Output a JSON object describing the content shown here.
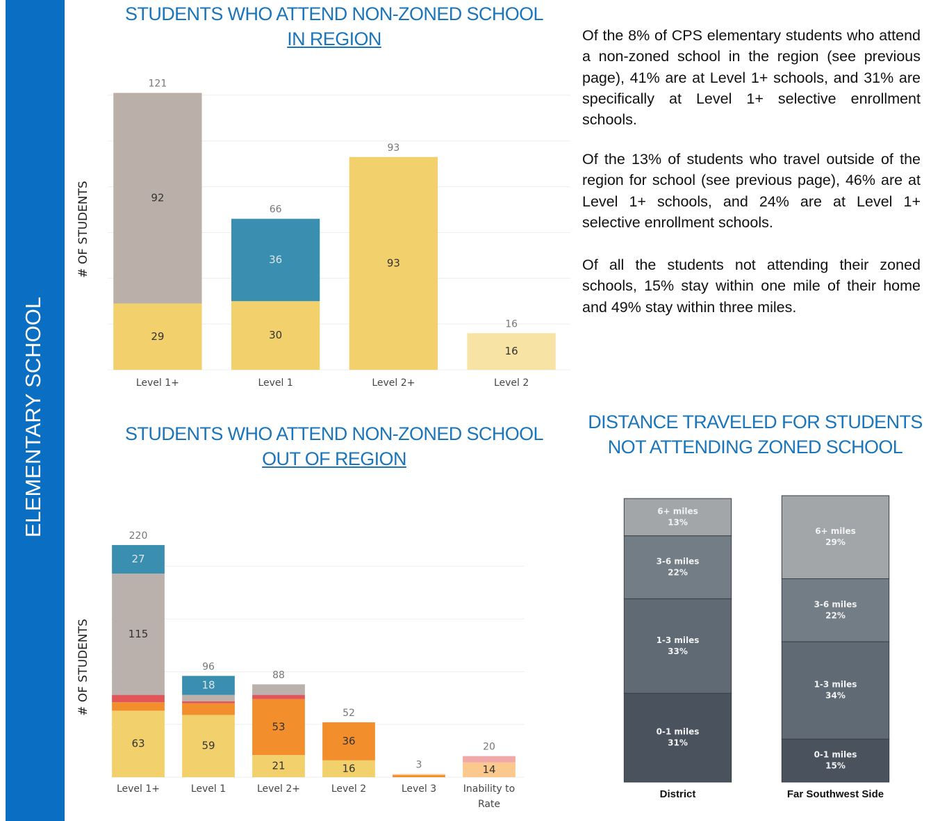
{
  "sidebar": "ELEMENTARY SCHOOL",
  "paragraphs": [
    "Of the 8% of CPS elementary students who attend a non-zoned school in the region (see previous page), 41% are at Level 1+ schools, and 31% are specifically at Level 1+ selective enrollment schools.",
    "Of the 13% of students who travel outside of the region for school (see previous page), 46% are at Level 1+ schools, and 24% are at Level 1+ selective enrollment schools.",
    "Of all the students not attending their zoned schools, 15% stay within one mile of their home and 49% stay within three miles."
  ],
  "chart_data": [
    {
      "type": "stacked_bar",
      "title": "STUDENTS WHO ATTEND NON-ZONED SCHOOL",
      "subtitle": "IN REGION",
      "y_label": "# OF STUDENTS",
      "categories": [
        "Level 1+",
        "Level 1",
        "Level 2+",
        "Level 2"
      ],
      "series": [
        {
          "color": "#f2d06b",
          "values": [
            29,
            30,
            93,
            null
          ]
        },
        {
          "color": "#f7e3a3",
          "values": [
            null,
            null,
            null,
            16
          ]
        },
        {
          "color": "#bab0a9",
          "values": [
            92,
            null,
            null,
            null
          ]
        },
        {
          "color": "#3a8fb0",
          "values": [
            null,
            36,
            null,
            null
          ]
        }
      ],
      "totals": [
        121,
        66,
        93,
        16
      ],
      "ylim": [
        0,
        130
      ],
      "yticks": [
        0,
        20,
        40,
        60,
        80,
        100,
        120
      ],
      "grid": true
    },
    {
      "type": "stacked_bar",
      "title": "STUDENTS WHO ATTEND NON-ZONED SCHOOL",
      "subtitle": "OUT OF REGION",
      "y_label": "# OF STUDENTS",
      "categories": [
        "Level 1+",
        "Level 1",
        "Level 2+",
        "Level 2",
        "Level 3",
        "Inability to Rate"
      ],
      "series": [
        {
          "color": "#f2d06b",
          "values": [
            63,
            59,
            21,
            16,
            null,
            null
          ]
        },
        {
          "color": "#f28e2b",
          "values": [
            8,
            11,
            53,
            36,
            2,
            null
          ]
        },
        {
          "color": "#fbc98e",
          "values": [
            null,
            null,
            null,
            null,
            1,
            14
          ]
        },
        {
          "color": "#e15759",
          "values": [
            7,
            2,
            4,
            null,
            null,
            null
          ]
        },
        {
          "color": "#f0a8a8",
          "values": [
            null,
            null,
            null,
            null,
            null,
            6
          ]
        },
        {
          "color": "#bab0ac",
          "values": [
            115,
            6,
            10,
            null,
            null,
            null
          ]
        },
        {
          "color": "#3a8fb0",
          "values": [
            27,
            18,
            null,
            null,
            null,
            null
          ]
        }
      ],
      "totals": [
        220,
        96,
        88,
        52,
        3,
        20
      ],
      "ylim": [
        0,
        250
      ],
      "yticks": [
        0,
        50,
        100,
        150,
        200
      ],
      "grid": true
    },
    {
      "type": "stacked_bar",
      "title": "DISTANCE TRAVELED FOR STUDENTS NOT ATTENDING ZONED SCHOOL",
      "categories": [
        "District",
        "Far Southwest Side"
      ],
      "series": [
        {
          "name": "0-1 miles",
          "color": "#4a525e",
          "values": [
            31,
            15
          ],
          "value_labels": [
            "31%",
            "15%"
          ]
        },
        {
          "name": "1-3 miles",
          "color": "#5f6a74",
          "values": [
            33,
            34
          ],
          "value_labels": [
            "33%",
            "34%"
          ]
        },
        {
          "name": "3-6 miles",
          "color": "#737d85",
          "values": [
            22,
            22
          ],
          "value_labels": [
            "22%",
            "22%"
          ]
        },
        {
          "name": "6+ miles",
          "color": "#a3a6a8",
          "values": [
            13,
            29
          ],
          "value_labels": [
            "13%",
            "29%"
          ]
        }
      ],
      "ylim": [
        0,
        100
      ]
    }
  ]
}
